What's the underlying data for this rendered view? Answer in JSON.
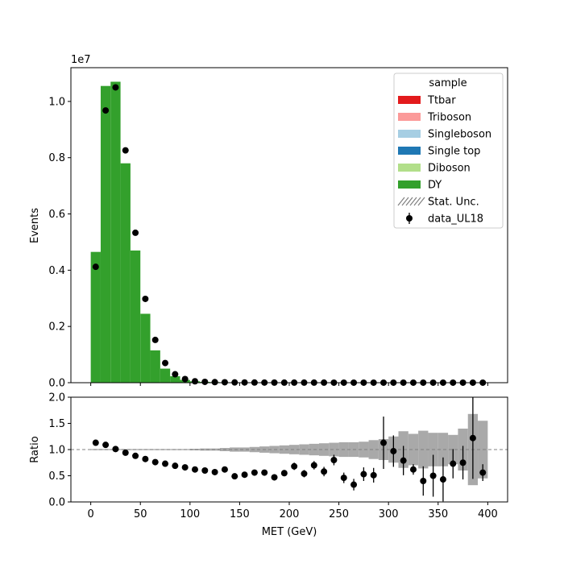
{
  "chart_data": [
    {
      "type": "bar",
      "name": "main-panel",
      "ylabel": "Events",
      "xlabel": "",
      "offset_text": "1e7",
      "xlim": [
        -20,
        420
      ],
      "ylim": [
        0,
        1.12
      ],
      "y_scale_exponent": 7,
      "yticks": [
        0.0,
        0.2,
        0.4,
        0.6,
        0.8,
        1.0
      ],
      "ytick_labels": [
        "0.0",
        "0.2",
        "0.4",
        "0.6",
        "0.8",
        "1.0"
      ],
      "xticks": [
        0,
        50,
        100,
        150,
        200,
        250,
        300,
        350,
        400
      ],
      "bin_width": 10,
      "bin_edges_start": 0,
      "series": [
        {
          "name": "DY",
          "color": "#33a02c",
          "values": [
            0.465,
            1.055,
            1.07,
            0.78,
            0.47,
            0.245,
            0.115,
            0.05,
            0.023,
            0.01,
            0.005,
            0.003,
            0.002,
            0.0015,
            0.001,
            0.0008,
            0.0006,
            0.0005,
            0.0004,
            0.0003,
            0.0003,
            0.0002,
            0.0002,
            0.0002,
            0.0001,
            0.0001,
            0.0001,
            0.0001,
            0.0001,
            0.0001,
            0.0001,
            0.0001,
            0.0001,
            0.0001,
            0.0001,
            0.0001,
            0.0001,
            0.0001,
            0.0001,
            0.0001
          ]
        },
        {
          "name": "data_UL18",
          "color": "#000000",
          "x": [
            5,
            15,
            25,
            35,
            45,
            55,
            65,
            75,
            85,
            95,
            105,
            115,
            125,
            135,
            145,
            155,
            165,
            175,
            185,
            195,
            205,
            215,
            225,
            235,
            245,
            255,
            265,
            275,
            285,
            295,
            305,
            315,
            325,
            335,
            345,
            355,
            365,
            375,
            385,
            395
          ],
          "values": [
            0.412,
            0.968,
            1.05,
            0.826,
            0.533,
            0.298,
            0.152,
            0.07,
            0.03,
            0.013,
            0.005,
            0.003,
            0.002,
            0.0015,
            0.001,
            0.0008,
            0.0006,
            0.0005,
            0.0004,
            0.0003,
            0.0003,
            0.0002,
            0.0002,
            0.0002,
            0.0001,
            0.0001,
            0.0001,
            0.0001,
            0.0001,
            0.0001,
            0.0001,
            0.0001,
            0.0001,
            0.0001,
            0.0001,
            0.0001,
            0.0001,
            0.0001,
            0.0001,
            0.0001
          ]
        }
      ],
      "legend": {
        "title": "sample",
        "placement": "top-right",
        "entries": [
          {
            "label": "Ttbar",
            "color": "#e31a1c",
            "kind": "patch"
          },
          {
            "label": "Triboson",
            "color": "#fb9a99",
            "kind": "patch"
          },
          {
            "label": "Singleboson",
            "color": "#a6cee3",
            "kind": "patch"
          },
          {
            "label": "Single top",
            "color": "#1f78b4",
            "kind": "patch"
          },
          {
            "label": "Diboson",
            "color": "#b2df8a",
            "kind": "patch"
          },
          {
            "label": "DY",
            "color": "#33a02c",
            "kind": "patch"
          },
          {
            "label": "Stat. Unc.",
            "color": "#808080",
            "kind": "hatch"
          },
          {
            "label": "data_UL18",
            "color": "#000000",
            "kind": "errorbar"
          }
        ]
      }
    },
    {
      "type": "scatter",
      "name": "ratio-panel",
      "ylabel": "Ratio",
      "xlabel": "MET (GeV)",
      "xlim": [
        -20,
        420
      ],
      "ylim": [
        0,
        2
      ],
      "yticks": [
        0.0,
        0.5,
        1.0,
        1.5,
        2.0
      ],
      "ytick_labels": [
        "0.0",
        "0.5",
        "1.0",
        "1.5",
        "2.0"
      ],
      "xticks": [
        0,
        50,
        100,
        150,
        200,
        250,
        300,
        350,
        400
      ],
      "xtick_labels": [
        "0",
        "50",
        "100",
        "150",
        "200",
        "250",
        "300",
        "350",
        "400"
      ],
      "reference_line": 1.0,
      "x": [
        5,
        15,
        25,
        35,
        45,
        55,
        65,
        75,
        85,
        95,
        105,
        115,
        125,
        135,
        145,
        155,
        165,
        175,
        185,
        195,
        205,
        215,
        225,
        235,
        245,
        255,
        265,
        275,
        285,
        295,
        305,
        315,
        325,
        335,
        345,
        355,
        365,
        375,
        385,
        395
      ],
      "values": [
        1.13,
        1.09,
        1.01,
        0.94,
        0.88,
        0.82,
        0.76,
        0.73,
        0.69,
        0.66,
        0.62,
        0.6,
        0.57,
        0.62,
        0.49,
        0.52,
        0.56,
        0.56,
        0.47,
        0.55,
        0.68,
        0.54,
        0.7,
        0.58,
        0.8,
        0.46,
        0.33,
        0.53,
        0.51,
        1.13,
        0.97,
        0.79,
        0.62,
        0.4,
        0.5,
        0.43,
        0.73,
        0.75,
        1.22,
        0.56
      ],
      "errors": [
        0.01,
        0.01,
        0.01,
        0.01,
        0.01,
        0.01,
        0.01,
        0.01,
        0.01,
        0.02,
        0.02,
        0.02,
        0.03,
        0.03,
        0.04,
        0.04,
        0.05,
        0.05,
        0.06,
        0.06,
        0.07,
        0.07,
        0.08,
        0.09,
        0.1,
        0.1,
        0.11,
        0.13,
        0.14,
        0.5,
        0.3,
        0.28,
        0.1,
        0.28,
        0.4,
        0.42,
        0.28,
        0.32,
        0.78,
        0.16
      ],
      "unc_band": [
        0.01,
        0.01,
        0.01,
        0.01,
        0.01,
        0.01,
        0.01,
        0.01,
        0.01,
        0.01,
        0.015,
        0.02,
        0.02,
        0.03,
        0.04,
        0.04,
        0.05,
        0.06,
        0.07,
        0.08,
        0.09,
        0.1,
        0.11,
        0.12,
        0.13,
        0.14,
        0.14,
        0.15,
        0.18,
        0.2,
        0.25,
        0.35,
        0.3,
        0.36,
        0.32,
        0.32,
        0.28,
        0.4,
        0.68,
        0.55
      ]
    }
  ]
}
